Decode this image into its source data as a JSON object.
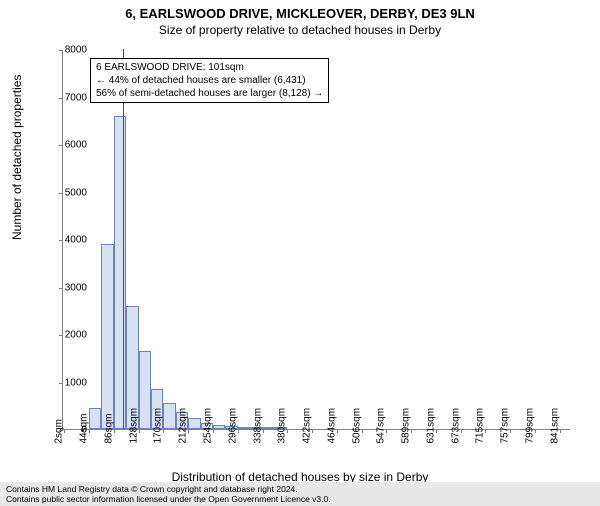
{
  "title_line1": "6, EARLSWOOD DRIVE, MICKLEOVER, DERBY, DE3 9LN",
  "title_line2": "Size of property relative to detached houses in Derby",
  "chart": {
    "type": "histogram",
    "ylabel": "Number of detached properties",
    "xlabel": "Distribution of detached houses by size in Derby",
    "ylim": [
      0,
      8000
    ],
    "ytick_step": 1000,
    "yticks": [
      0,
      1000,
      2000,
      3000,
      4000,
      5000,
      6000,
      7000,
      8000
    ],
    "xtick_labels": [
      "2sqm",
      "44sqm",
      "86sqm",
      "128sqm",
      "170sqm",
      "212sqm",
      "254sqm",
      "296sqm",
      "338sqm",
      "380sqm",
      "422sqm",
      "464sqm",
      "506sqm",
      "547sqm",
      "589sqm",
      "631sqm",
      "673sqm",
      "715sqm",
      "757sqm",
      "799sqm",
      "841sqm"
    ],
    "xtick_positions": [
      2,
      44,
      86,
      128,
      170,
      212,
      254,
      296,
      338,
      380,
      422,
      464,
      506,
      547,
      589,
      631,
      673,
      715,
      757,
      799,
      841
    ],
    "x_range": [
      0,
      860
    ],
    "bin_width": 21,
    "bars": [
      {
        "x0": 44,
        "x1": 65,
        "y": 450
      },
      {
        "x0": 65,
        "x1": 86,
        "y": 3900
      },
      {
        "x0": 86,
        "x1": 107,
        "y": 6600
      },
      {
        "x0": 107,
        "x1": 128,
        "y": 2600
      },
      {
        "x0": 128,
        "x1": 149,
        "y": 1650
      },
      {
        "x0": 149,
        "x1": 170,
        "y": 850
      },
      {
        "x0": 170,
        "x1": 191,
        "y": 550
      },
      {
        "x0": 191,
        "x1": 212,
        "y": 350
      },
      {
        "x0": 212,
        "x1": 233,
        "y": 230
      },
      {
        "x0": 233,
        "x1": 254,
        "y": 120
      },
      {
        "x0": 254,
        "x1": 275,
        "y": 80
      },
      {
        "x0": 275,
        "x1": 296,
        "y": 60
      },
      {
        "x0": 296,
        "x1": 317,
        "y": 50
      },
      {
        "x0": 317,
        "x1": 338,
        "y": 40
      },
      {
        "x0": 338,
        "x1": 359,
        "y": 25
      },
      {
        "x0": 359,
        "x1": 380,
        "y": 15
      }
    ],
    "bar_fill": "#d6e2f3",
    "bar_stroke": "#6a85b7",
    "marker_x": 101,
    "marker_color": "#d11515",
    "background_color": "#ffffff",
    "axis_color": "#7f7f7f",
    "title_fontsize": 13,
    "label_fontsize": 12,
    "tick_fontsize": 10
  },
  "annotation": {
    "line1": "6 EARLSWOOD DRIVE: 101sqm",
    "line2": "← 44% of detached houses are smaller (6,431)",
    "line3": "56% of semi-detached houses are larger (8,128) →",
    "box_border": "#000000",
    "box_bg": "#ffffff"
  },
  "footer": {
    "line1": "Contains HM Land Registry data © Crown copyright and database right 2024.",
    "line2": "Contains public sector information licensed under the Open Government Licence v3.0.",
    "bg": "#e8e8e8"
  }
}
